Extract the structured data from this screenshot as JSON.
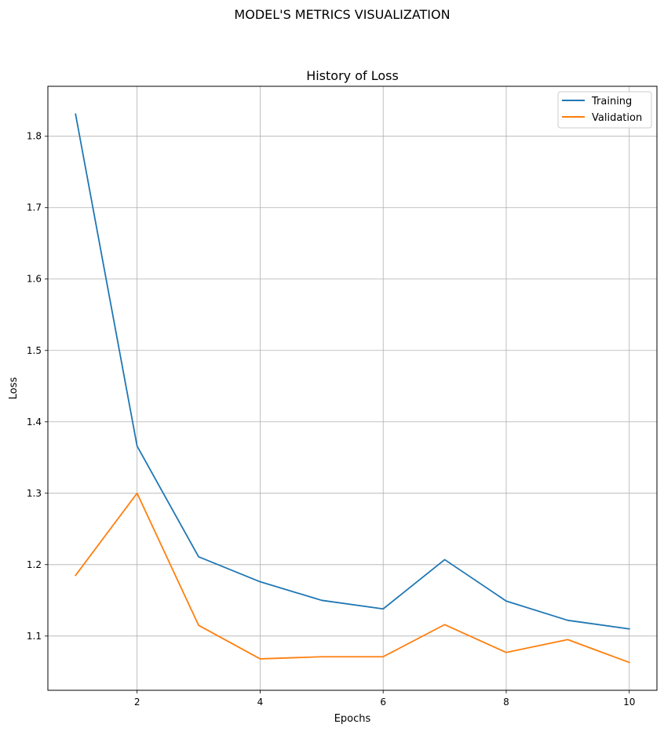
{
  "figure": {
    "suptitle": "MODEL'S METRICS VISUALIZATION"
  },
  "chart_data": {
    "type": "line",
    "title": "History of Loss",
    "xlabel": "Epochs",
    "ylabel": "Loss",
    "x": [
      1,
      2,
      3,
      4,
      5,
      6,
      7,
      8,
      9,
      10
    ],
    "series": [
      {
        "name": "Training",
        "color": "#1f77b4",
        "values": [
          1.831,
          1.366,
          1.211,
          1.176,
          1.15,
          1.138,
          1.207,
          1.149,
          1.122,
          1.11
        ]
      },
      {
        "name": "Validation",
        "color": "#ff7f0e",
        "values": [
          1.185,
          1.3,
          1.115,
          1.068,
          1.071,
          1.071,
          1.116,
          1.077,
          1.095,
          1.063
        ]
      }
    ],
    "xlim": [
      0.55,
      10.45
    ],
    "ylim": [
      1.024,
      1.87
    ],
    "xticks": [
      2,
      4,
      6,
      8,
      10
    ],
    "yticks": [
      1.1,
      1.2,
      1.3,
      1.4,
      1.5,
      1.6,
      1.7,
      1.8
    ],
    "xtick_labels": [
      "2",
      "4",
      "6",
      "8",
      "10"
    ],
    "ytick_labels": [
      "1.1",
      "1.2",
      "1.3",
      "1.4",
      "1.5",
      "1.6",
      "1.7",
      "1.8"
    ],
    "grid": true,
    "legend_position": "top-right"
  }
}
